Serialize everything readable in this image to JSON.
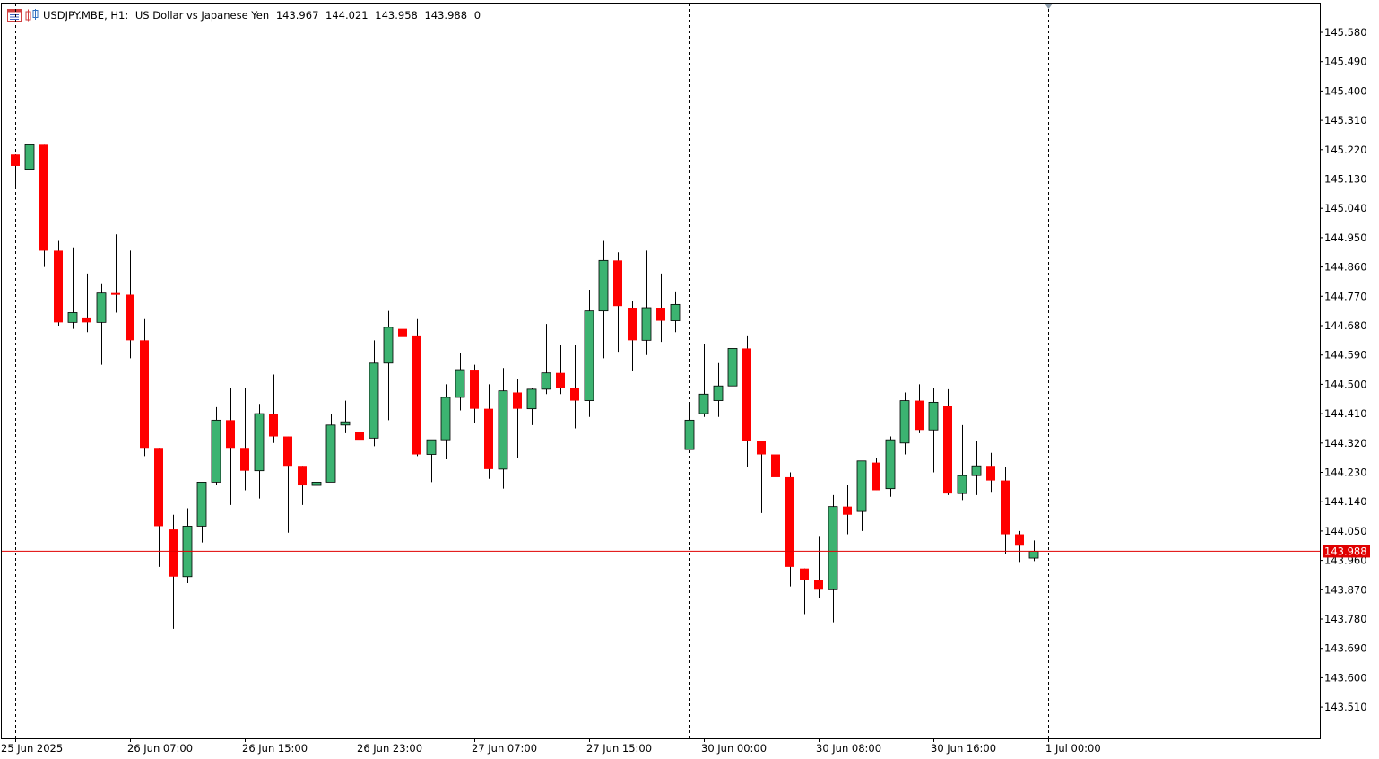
{
  "header": {
    "symbol": "USDJPY.MBE, H1:",
    "description": "US Dollar vs Japanese Yen",
    "open": "143.967",
    "high": "144.021",
    "low": "143.958",
    "close": "143.988",
    "volume": "0"
  },
  "icons": [
    "chart-window-menu-icon",
    "chart-type-icon"
  ],
  "colors": {
    "bull": "#3cb371",
    "bear": "#ff0000",
    "price_line": "#e00000",
    "grid": "#000000"
  },
  "chart_data": {
    "type": "candlestick",
    "ylim": [
      143.42,
      145.66
    ],
    "y_ticks": [
      "145.580",
      "145.490",
      "145.400",
      "145.310",
      "145.220",
      "145.130",
      "145.040",
      "144.950",
      "144.860",
      "144.770",
      "144.680",
      "144.590",
      "144.500",
      "144.410",
      "144.320",
      "144.230",
      "144.140",
      "144.050",
      "143.960",
      "143.870",
      "143.780",
      "143.690",
      "143.600",
      "143.510"
    ],
    "x_labels": [
      {
        "index": 0,
        "text": "25 Jun 2025"
      },
      {
        "index": 8,
        "text": "26 Jun 07:00"
      },
      {
        "index": 16,
        "text": "26 Jun 15:00"
      },
      {
        "index": 24,
        "text": "26 Jun 23:00"
      },
      {
        "index": 32,
        "text": "27 Jun 07:00"
      },
      {
        "index": 40,
        "text": "27 Jun 15:00"
      },
      {
        "index": 48,
        "text": "30 Jun 00:00"
      },
      {
        "index": 56,
        "text": "30 Jun 08:00"
      },
      {
        "index": 64,
        "text": "30 Jun 16:00"
      },
      {
        "index": 72,
        "text": "1 Jul 00:00"
      }
    ],
    "separators": [
      0,
      24,
      47,
      72
    ],
    "current_price": {
      "value": 143.988,
      "label": "143.988"
    },
    "candles": [
      {
        "o": 145.205,
        "h": 145.205,
        "l": 145.105,
        "c": 145.17
      },
      {
        "o": 145.16,
        "h": 145.255,
        "l": 145.16,
        "c": 145.235
      },
      {
        "o": 145.235,
        "h": 145.235,
        "l": 144.86,
        "c": 144.91
      },
      {
        "o": 144.91,
        "h": 144.94,
        "l": 144.68,
        "c": 144.69
      },
      {
        "o": 144.69,
        "h": 144.92,
        "l": 144.67,
        "c": 144.72
      },
      {
        "o": 144.705,
        "h": 144.84,
        "l": 144.66,
        "c": 144.69
      },
      {
        "o": 144.69,
        "h": 144.81,
        "l": 144.56,
        "c": 144.78
      },
      {
        "o": 144.78,
        "h": 144.96,
        "l": 144.72,
        "c": 144.775
      },
      {
        "o": 144.775,
        "h": 144.91,
        "l": 144.58,
        "c": 144.635
      },
      {
        "o": 144.635,
        "h": 144.7,
        "l": 144.28,
        "c": 144.305
      },
      {
        "o": 144.305,
        "h": 144.305,
        "l": 143.94,
        "c": 144.065
      },
      {
        "o": 144.055,
        "h": 144.1,
        "l": 143.75,
        "c": 143.91
      },
      {
        "o": 143.91,
        "h": 144.12,
        "l": 143.89,
        "c": 144.065
      },
      {
        "o": 144.065,
        "h": 144.2,
        "l": 144.015,
        "c": 144.2
      },
      {
        "o": 144.2,
        "h": 144.43,
        "l": 144.19,
        "c": 144.39
      },
      {
        "o": 144.39,
        "h": 144.49,
        "l": 144.13,
        "c": 144.305
      },
      {
        "o": 144.305,
        "h": 144.49,
        "l": 144.175,
        "c": 144.235
      },
      {
        "o": 144.235,
        "h": 144.44,
        "l": 144.15,
        "c": 144.41
      },
      {
        "o": 144.41,
        "h": 144.53,
        "l": 144.32,
        "c": 144.34
      },
      {
        "o": 144.34,
        "h": 144.34,
        "l": 144.045,
        "c": 144.25
      },
      {
        "o": 144.25,
        "h": 144.25,
        "l": 144.13,
        "c": 144.19
      },
      {
        "o": 144.19,
        "h": 144.23,
        "l": 144.17,
        "c": 144.2
      },
      {
        "o": 144.2,
        "h": 144.41,
        "l": 144.2,
        "c": 144.375
      },
      {
        "o": 144.375,
        "h": 144.45,
        "l": 144.35,
        "c": 144.385
      },
      {
        "o": 144.355,
        "h": 144.42,
        "l": 144.26,
        "c": 144.33
      },
      {
        "o": 144.335,
        "h": 144.635,
        "l": 144.31,
        "c": 144.565
      },
      {
        "o": 144.565,
        "h": 144.725,
        "l": 144.39,
        "c": 144.675
      },
      {
        "o": 144.67,
        "h": 144.8,
        "l": 144.5,
        "c": 144.645
      },
      {
        "o": 144.65,
        "h": 144.7,
        "l": 144.28,
        "c": 144.285
      },
      {
        "o": 144.285,
        "h": 144.32,
        "l": 144.2,
        "c": 144.33
      },
      {
        "o": 144.33,
        "h": 144.5,
        "l": 144.27,
        "c": 144.46
      },
      {
        "o": 144.46,
        "h": 144.595,
        "l": 144.42,
        "c": 144.545
      },
      {
        "o": 144.545,
        "h": 144.56,
        "l": 144.38,
        "c": 144.425
      },
      {
        "o": 144.425,
        "h": 144.5,
        "l": 144.21,
        "c": 144.24
      },
      {
        "o": 144.24,
        "h": 144.55,
        "l": 144.18,
        "c": 144.48
      },
      {
        "o": 144.475,
        "h": 144.515,
        "l": 144.275,
        "c": 144.425
      },
      {
        "o": 144.425,
        "h": 144.49,
        "l": 144.375,
        "c": 144.485
      },
      {
        "o": 144.485,
        "h": 144.685,
        "l": 144.47,
        "c": 144.535
      },
      {
        "o": 144.535,
        "h": 144.62,
        "l": 144.47,
        "c": 144.49
      },
      {
        "o": 144.49,
        "h": 144.62,
        "l": 144.365,
        "c": 144.45
      },
      {
        "o": 144.45,
        "h": 144.79,
        "l": 144.4,
        "c": 144.725
      },
      {
        "o": 144.725,
        "h": 144.94,
        "l": 144.58,
        "c": 144.88
      },
      {
        "o": 144.88,
        "h": 144.905,
        "l": 144.6,
        "c": 144.74
      },
      {
        "o": 144.735,
        "h": 144.755,
        "l": 144.54,
        "c": 144.635
      },
      {
        "o": 144.635,
        "h": 144.91,
        "l": 144.59,
        "c": 144.735
      },
      {
        "o": 144.735,
        "h": 144.84,
        "l": 144.63,
        "c": 144.695
      },
      {
        "o": 144.695,
        "h": 144.785,
        "l": 144.66,
        "c": 144.745
      },
      {
        "o": 144.3,
        "h": 144.445,
        "l": 144.3,
        "c": 144.39
      },
      {
        "o": 144.41,
        "h": 144.625,
        "l": 144.4,
        "c": 144.47
      },
      {
        "o": 144.45,
        "h": 144.565,
        "l": 144.4,
        "c": 144.495
      },
      {
        "o": 144.495,
        "h": 144.755,
        "l": 144.495,
        "c": 144.61
      },
      {
        "o": 144.61,
        "h": 144.65,
        "l": 144.245,
        "c": 144.325
      },
      {
        "o": 144.325,
        "h": 144.325,
        "l": 144.105,
        "c": 144.285
      },
      {
        "o": 144.285,
        "h": 144.3,
        "l": 144.14,
        "c": 144.215
      },
      {
        "o": 144.215,
        "h": 144.23,
        "l": 143.88,
        "c": 143.94
      },
      {
        "o": 143.935,
        "h": 143.935,
        "l": 143.795,
        "c": 143.9
      },
      {
        "o": 143.9,
        "h": 144.035,
        "l": 143.845,
        "c": 143.87
      },
      {
        "o": 143.87,
        "h": 144.16,
        "l": 143.77,
        "c": 144.125
      },
      {
        "o": 144.125,
        "h": 144.19,
        "l": 144.04,
        "c": 144.1
      },
      {
        "o": 144.11,
        "h": 144.26,
        "l": 144.05,
        "c": 144.265
      },
      {
        "o": 144.26,
        "h": 144.275,
        "l": 144.175,
        "c": 144.175
      },
      {
        "o": 144.18,
        "h": 144.34,
        "l": 144.155,
        "c": 144.33
      },
      {
        "o": 144.32,
        "h": 144.475,
        "l": 144.285,
        "c": 144.45
      },
      {
        "o": 144.45,
        "h": 144.5,
        "l": 144.35,
        "c": 144.36
      },
      {
        "o": 144.36,
        "h": 144.49,
        "l": 144.23,
        "c": 144.445
      },
      {
        "o": 144.435,
        "h": 144.485,
        "l": 144.16,
        "c": 144.165
      },
      {
        "o": 144.165,
        "h": 144.375,
        "l": 144.145,
        "c": 144.22
      },
      {
        "o": 144.22,
        "h": 144.325,
        "l": 144.16,
        "c": 144.25
      },
      {
        "o": 144.25,
        "h": 144.29,
        "l": 144.17,
        "c": 144.205
      },
      {
        "o": 144.205,
        "h": 144.245,
        "l": 143.98,
        "c": 144.04
      },
      {
        "o": 144.04,
        "h": 144.05,
        "l": 143.955,
        "c": 144.005
      },
      {
        "o": 143.967,
        "h": 144.021,
        "l": 143.958,
        "c": 143.988
      }
    ]
  }
}
